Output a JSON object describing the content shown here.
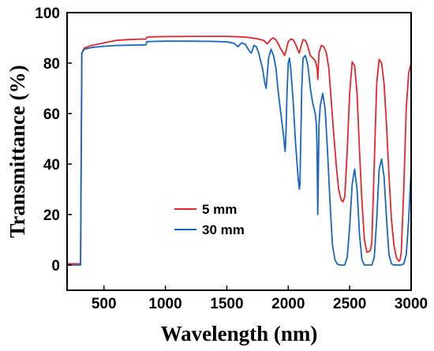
{
  "chart_data": {
    "type": "line",
    "xlabel": "Wavelength (nm)",
    "ylabel": "Transmittance (%)",
    "xlim": [
      200,
      3000
    ],
    "ylim": [
      -10,
      100
    ],
    "xticks": [
      500,
      1000,
      1500,
      2000,
      2500,
      3000
    ],
    "yticks": [
      0,
      20,
      40,
      60,
      80,
      100
    ],
    "grid": false,
    "legend_position": "middle-left",
    "series": [
      {
        "name": "5 mm",
        "color": "#e8242b",
        "x": [
          200,
          300,
          310,
          320,
          340,
          400,
          500,
          600,
          700,
          800,
          840,
          850,
          900,
          1000,
          1200,
          1400,
          1500,
          1550,
          1600,
          1650,
          1700,
          1750,
          1800,
          1830,
          1860,
          1880,
          1900,
          1920,
          1940,
          1960,
          1970,
          1980,
          2000,
          2020,
          2040,
          2060,
          2080,
          2090,
          2100,
          2120,
          2140,
          2160,
          2180,
          2200,
          2220,
          2235,
          2240,
          2245,
          2250,
          2270,
          2290,
          2310,
          2330,
          2350,
          2370,
          2390,
          2410,
          2430,
          2445,
          2460,
          2480,
          2500,
          2520,
          2540,
          2560,
          2580,
          2600,
          2620,
          2640,
          2660,
          2670,
          2680,
          2700,
          2720,
          2740,
          2760,
          2780,
          2800,
          2820,
          2840,
          2860,
          2880,
          2900,
          2910,
          2920,
          2940,
          2960,
          2980,
          3000
        ],
        "y": [
          0.5,
          0.5,
          0.5,
          84,
          86,
          87,
          88,
          89,
          89.3,
          89.5,
          89.5,
          90.3,
          90.4,
          90.5,
          90.6,
          90.6,
          90.6,
          90.5,
          90.4,
          90.3,
          90,
          89.6,
          89,
          87.6,
          89.5,
          90,
          89.2,
          87.5,
          85.5,
          84,
          83,
          84.5,
          88.5,
          89.5,
          89.3,
          87.5,
          85,
          84,
          86,
          89.3,
          89,
          86.5,
          83,
          82,
          81,
          78,
          73.5,
          78,
          84,
          87,
          86.5,
          84,
          78,
          65,
          52,
          40,
          30,
          26,
          25,
          27,
          45,
          68,
          80.5,
          79,
          68,
          45,
          25,
          10,
          5,
          5.5,
          6,
          9,
          40,
          72,
          81.5,
          80,
          72,
          55,
          35,
          18,
          8,
          3,
          1.5,
          2,
          5,
          30,
          62,
          76,
          80
        ]
      },
      {
        "name": "30 mm",
        "color": "#1566c7",
        "x": [
          200,
          300,
          310,
          320,
          340,
          400,
          500,
          600,
          700,
          800,
          840,
          850,
          900,
          1000,
          1200,
          1400,
          1500,
          1530,
          1560,
          1590,
          1620,
          1650,
          1680,
          1700,
          1720,
          1740,
          1760,
          1780,
          1790,
          1800,
          1810,
          1820,
          1840,
          1860,
          1880,
          1900,
          1920,
          1940,
          1950,
          1960,
          1970,
          1975,
          1980,
          1990,
          2000,
          2010,
          2020,
          2040,
          2060,
          2080,
          2090,
          2095,
          2100,
          2110,
          2120,
          2140,
          2160,
          2180,
          2200,
          2210,
          2220,
          2230,
          2235,
          2240,
          2245,
          2250,
          2260,
          2280,
          2300,
          2320,
          2340,
          2360,
          2380,
          2400,
          2420,
          2440,
          2460,
          2480,
          2500,
          2520,
          2540,
          2560,
          2580,
          2600,
          2620,
          2640,
          2660,
          2680,
          2700,
          2720,
          2740,
          2760,
          2780,
          2800,
          2820,
          2840,
          2860,
          2880,
          2900,
          2920,
          2940,
          2960,
          2980,
          3000
        ],
        "y": [
          0,
          0,
          0,
          84,
          85.5,
          86.2,
          86.7,
          87,
          87.1,
          87.2,
          87.2,
          88.5,
          88.6,
          88.7,
          88.7,
          88.6,
          88.4,
          88.2,
          87.8,
          86.5,
          88,
          87.5,
          85,
          84,
          87,
          86.5,
          84,
          80,
          78,
          75,
          72,
          70,
          82,
          85.5,
          83,
          78,
          68,
          60,
          56,
          52,
          47,
          45,
          50,
          68,
          80,
          82,
          78,
          65,
          48,
          35,
          30,
          32,
          45,
          70,
          82,
          83,
          79,
          70,
          64,
          62,
          60,
          55,
          44,
          20,
          35,
          55,
          63,
          68,
          62,
          45,
          25,
          8,
          2,
          0.3,
          0,
          0,
          0,
          3,
          15,
          32,
          38,
          30,
          12,
          2,
          0,
          0,
          0,
          0,
          3,
          18,
          38,
          42,
          35,
          18,
          4,
          0.5,
          0,
          0,
          0,
          0,
          0.5,
          4,
          18,
          38
        ]
      }
    ]
  }
}
